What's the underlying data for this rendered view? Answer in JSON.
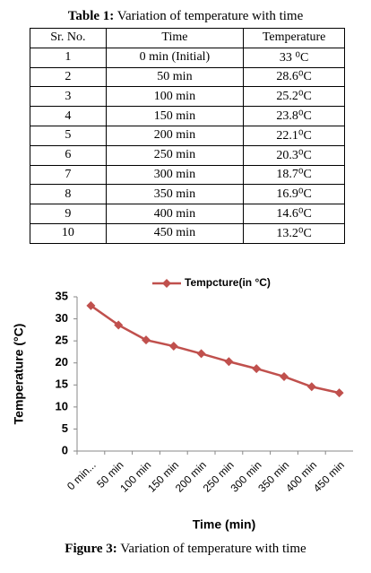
{
  "table": {
    "title_label": "Table 1:",
    "title_text": "Variation of temperature with time",
    "headers": [
      "Sr. No.",
      "Time",
      "Temperature"
    ],
    "rows": [
      [
        "1",
        "0 min (Initial)",
        "33 ⁰C"
      ],
      [
        "2",
        "50 min",
        "28.6⁰C"
      ],
      [
        "3",
        "100 min",
        "25.2⁰C"
      ],
      [
        "4",
        "150 min",
        "23.8⁰C"
      ],
      [
        "5",
        "200 min",
        "22.1⁰C"
      ],
      [
        "6",
        "250 min",
        "20.3⁰C"
      ],
      [
        "7",
        "300 min",
        "18.7⁰C"
      ],
      [
        "8",
        "350 min",
        "16.9⁰C"
      ],
      [
        "9",
        "400 min",
        "14.6⁰C"
      ],
      [
        "10",
        "450 min",
        "13.2⁰C"
      ]
    ]
  },
  "chart_data": {
    "type": "line",
    "series_name": "Tempcture(in °C)",
    "color": "#c0504d",
    "y_label": "Temperature (°C)",
    "x_label": "Time (min)",
    "categories": [
      "0 min...",
      "50 min",
      "100 min",
      "150 min",
      "200 min",
      "250 min",
      "300 min",
      "350 min",
      "400 min",
      "450 min"
    ],
    "values": [
      33,
      28.6,
      25.2,
      23.8,
      22.1,
      20.3,
      18.7,
      16.9,
      14.6,
      13.2
    ],
    "ylim": [
      0,
      35
    ],
    "yticks": [
      0,
      5,
      10,
      15,
      20,
      25,
      30,
      35
    ],
    "grid": false,
    "legend": "top"
  },
  "figure": {
    "label": "Figure 3:",
    "text": "Variation of temperature with time"
  }
}
